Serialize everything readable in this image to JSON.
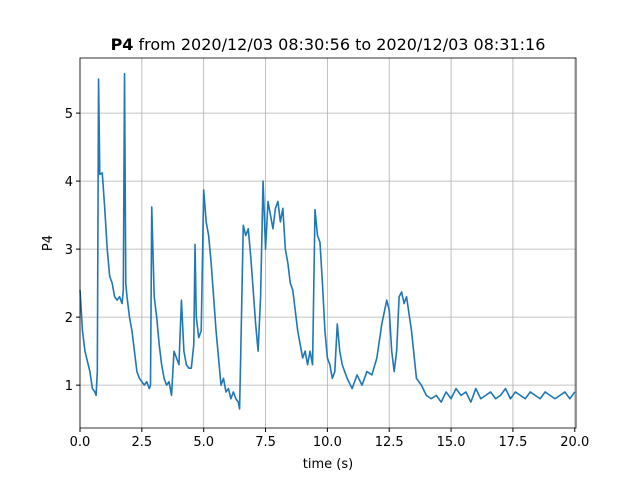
{
  "chart_data": {
    "type": "line",
    "title_bold": "P4",
    "title": "from 2020/12/03 08:30:56 to 2020/12/03 08:31:16",
    "x_label": "time (s)",
    "y_label": "P4",
    "grid": true,
    "xlim": [
      0,
      20.05
    ],
    "ylim": [
      0.37,
      5.81
    ],
    "xticks": [
      {
        "value": 0,
        "label": "0.0"
      },
      {
        "value": 2.5,
        "label": "2.5"
      },
      {
        "value": 5,
        "label": "5.0"
      },
      {
        "value": 7.5,
        "label": "7.5"
      },
      {
        "value": 10,
        "label": "10.0"
      },
      {
        "value": 12.5,
        "label": "12.5"
      },
      {
        "value": 15,
        "label": "15.0"
      },
      {
        "value": 17.5,
        "label": "17.5"
      },
      {
        "value": 20,
        "label": "20.0"
      }
    ],
    "yticks": [
      1,
      2,
      3,
      4,
      5
    ],
    "x": [
      0,
      0.1,
      0.2,
      0.3,
      0.4,
      0.5,
      0.6,
      0.65,
      0.7,
      0.75,
      0.8,
      0.9,
      1.0,
      1.1,
      1.2,
      1.3,
      1.4,
      1.5,
      1.6,
      1.7,
      1.75,
      1.8,
      1.85,
      1.9,
      2.0,
      2.1,
      2.2,
      2.3,
      2.4,
      2.5,
      2.6,
      2.7,
      2.8,
      2.85,
      2.9,
      3.0,
      3.1,
      3.2,
      3.3,
      3.4,
      3.5,
      3.6,
      3.7,
      3.8,
      3.9,
      4.0,
      4.1,
      4.2,
      4.3,
      4.4,
      4.5,
      4.6,
      4.65,
      4.7,
      4.8,
      4.9,
      5.0,
      5.1,
      5.2,
      5.3,
      5.4,
      5.5,
      5.6,
      5.7,
      5.8,
      5.9,
      6.0,
      6.1,
      6.2,
      6.3,
      6.4,
      6.45,
      6.5,
      6.6,
      6.7,
      6.8,
      6.9,
      7.0,
      7.1,
      7.2,
      7.3,
      7.4,
      7.5,
      7.6,
      7.7,
      7.8,
      7.9,
      8.0,
      8.1,
      8.2,
      8.3,
      8.4,
      8.5,
      8.6,
      8.7,
      8.8,
      8.9,
      9.0,
      9.1,
      9.2,
      9.3,
      9.4,
      9.5,
      9.6,
      9.7,
      9.8,
      9.9,
      10.0,
      10.1,
      10.2,
      10.3,
      10.4,
      10.5,
      10.6,
      10.8,
      11.0,
      11.2,
      11.4,
      11.6,
      11.8,
      12.0,
      12.2,
      12.4,
      12.5,
      12.6,
      12.7,
      12.8,
      12.9,
      13.0,
      13.1,
      13.2,
      13.4,
      13.6,
      13.8,
      14.0,
      14.2,
      14.4,
      14.6,
      14.8,
      15.0,
      15.2,
      15.4,
      15.6,
      15.8,
      16.0,
      16.2,
      16.4,
      16.6,
      16.8,
      17.0,
      17.2,
      17.4,
      17.6,
      17.8,
      18.0,
      18.2,
      18.4,
      18.6,
      18.8,
      19.0,
      19.2,
      19.4,
      19.6,
      19.8,
      20.0
    ],
    "series": [
      {
        "name": "P4",
        "color": "#1f77b4",
        "values": [
          2.4,
          1.8,
          1.5,
          1.35,
          1.2,
          0.95,
          0.9,
          0.85,
          1.2,
          5.5,
          4.1,
          4.12,
          3.6,
          3.0,
          2.6,
          2.5,
          2.3,
          2.25,
          2.3,
          2.2,
          2.4,
          5.58,
          2.5,
          2.3,
          2.0,
          1.8,
          1.5,
          1.2,
          1.1,
          1.05,
          1.0,
          1.05,
          0.95,
          1.0,
          3.62,
          2.3,
          2.0,
          1.6,
          1.3,
          1.1,
          1.0,
          1.05,
          0.85,
          1.5,
          1.4,
          1.3,
          2.25,
          1.5,
          1.3,
          1.25,
          1.25,
          1.6,
          3.07,
          2.0,
          1.7,
          1.8,
          3.87,
          3.4,
          3.2,
          2.8,
          2.3,
          1.8,
          1.4,
          1.0,
          1.1,
          0.9,
          0.95,
          0.8,
          0.9,
          0.8,
          0.75,
          0.65,
          1.5,
          3.35,
          3.2,
          3.3,
          2.9,
          2.4,
          1.9,
          1.5,
          2.3,
          4.0,
          3.0,
          3.7,
          3.5,
          3.3,
          3.6,
          3.7,
          3.4,
          3.6,
          3.0,
          2.8,
          2.5,
          2.4,
          2.1,
          1.8,
          1.6,
          1.4,
          1.5,
          1.3,
          1.5,
          1.3,
          3.58,
          3.2,
          3.1,
          2.5,
          1.8,
          1.4,
          1.3,
          1.1,
          1.2,
          1.9,
          1.5,
          1.3,
          1.1,
          0.95,
          1.15,
          1.0,
          1.2,
          1.15,
          1.4,
          1.9,
          2.25,
          2.1,
          1.5,
          1.2,
          1.5,
          2.3,
          2.37,
          2.2,
          2.3,
          1.8,
          1.1,
          1.0,
          0.85,
          0.8,
          0.85,
          0.75,
          0.9,
          0.8,
          0.95,
          0.85,
          0.9,
          0.75,
          0.95,
          0.8,
          0.85,
          0.9,
          0.8,
          0.85,
          0.95,
          0.8,
          0.9,
          0.85,
          0.8,
          0.9,
          0.85,
          0.8,
          0.9,
          0.85,
          0.8,
          0.85,
          0.9,
          0.8,
          0.9
        ]
      }
    ]
  }
}
